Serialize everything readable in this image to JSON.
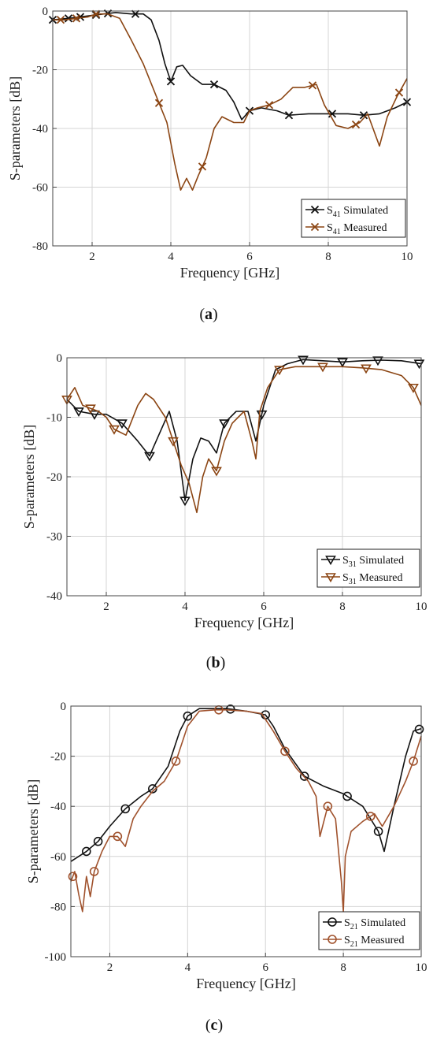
{
  "chart_data": [
    {
      "type": "line",
      "caption": "a",
      "xlabel": "Frequency [GHz]",
      "ylabel": "S-parameters [dB]",
      "xlim": [
        1,
        10
      ],
      "ylim": [
        -80,
        0
      ],
      "xticks": [
        2,
        4,
        6,
        8,
        10
      ],
      "yticks": [
        0,
        -20,
        -40,
        -60,
        -80
      ],
      "grid": true,
      "legend_position": "bottom-right",
      "series": [
        {
          "name": "S41 Simulated",
          "name_main": "S",
          "name_sub": "41",
          "name_rest": " Simulated",
          "color": "#111111",
          "marker": "x",
          "x": [
            1.0,
            1.4,
            1.7,
            2.0,
            2.3,
            2.6,
            3.0,
            3.3,
            3.5,
            3.7,
            3.85,
            4.0,
            4.15,
            4.3,
            4.5,
            4.8,
            5.1,
            5.4,
            5.6,
            5.8,
            6.0,
            6.3,
            6.7,
            7.0,
            7.5,
            8.0,
            8.5,
            8.9,
            9.3,
            9.7,
            10.0
          ],
          "y": [
            -3,
            -2.5,
            -2,
            -1.5,
            -1,
            -0.5,
            -1,
            -1,
            -3,
            -10,
            -18,
            -24,
            -19,
            -18.5,
            -22,
            -25,
            -25,
            -27,
            -31,
            -37,
            -34,
            -33,
            -34,
            -35.5,
            -35,
            -35,
            -35,
            -35.5,
            -35,
            -33,
            -31
          ],
          "marker_x": [
            1.0,
            1.4,
            1.7,
            2.1,
            2.4,
            3.1,
            4.0,
            5.1,
            6.0,
            7.0,
            8.1,
            8.9,
            10.0
          ]
        },
        {
          "name": "S41 Measured",
          "name_main": "S",
          "name_sub": "41",
          "name_rest": " Measured",
          "color": "#8b4513",
          "marker": "x",
          "x": [
            1.0,
            1.3,
            1.6,
            1.9,
            2.1,
            2.4,
            2.7,
            3.0,
            3.3,
            3.6,
            3.9,
            4.1,
            4.25,
            4.4,
            4.55,
            4.7,
            4.9,
            5.1,
            5.3,
            5.6,
            5.85,
            6.0,
            6.2,
            6.5,
            6.8,
            7.1,
            7.4,
            7.7,
            7.9,
            8.2,
            8.5,
            8.8,
            9.0,
            9.3,
            9.5,
            9.75,
            10.0
          ],
          "y": [
            -3,
            -3,
            -2.5,
            -2,
            -1,
            -1,
            -2.5,
            -10,
            -18,
            -28,
            -38,
            -52,
            -61,
            -57,
            -61,
            -56,
            -50,
            -40,
            -36,
            -38,
            -38,
            -34,
            -33,
            -32,
            -30,
            -26,
            -26,
            -25,
            -32,
            -39,
            -40,
            -38,
            -35,
            -46,
            -36,
            -29,
            -23
          ],
          "marker_x": [
            1.2,
            1.6,
            2.1,
            3.7,
            4.8,
            6.5,
            7.6,
            8.7,
            9.8
          ]
        }
      ]
    },
    {
      "type": "line",
      "caption": "b",
      "xlabel": "Frequency [GHz]",
      "ylabel": "S-parameters [dB]",
      "xlim": [
        1,
        10
      ],
      "ylim": [
        -40,
        0
      ],
      "xticks": [
        2,
        4,
        6,
        8,
        10
      ],
      "yticks": [
        0,
        -10,
        -20,
        -30,
        -40
      ],
      "grid": true,
      "legend_position": "bottom-right",
      "series": [
        {
          "name": "S31 Simulated",
          "name_main": "S",
          "name_sub": "31",
          "name_rest": " Simulated",
          "color": "#111111",
          "marker": "triangle-down",
          "x": [
            1.0,
            1.3,
            1.7,
            2.0,
            2.4,
            2.8,
            3.1,
            3.4,
            3.6,
            3.8,
            4.0,
            4.2,
            4.4,
            4.6,
            4.8,
            5.0,
            5.3,
            5.6,
            5.8,
            6.0,
            6.3,
            6.6,
            7.0,
            7.5,
            8.0,
            8.5,
            9.0,
            9.5,
            10.0
          ],
          "y": [
            -7,
            -9,
            -9.5,
            -9.5,
            -11,
            -14,
            -16.5,
            -12,
            -9,
            -14,
            -24,
            -17,
            -13.5,
            -14,
            -16,
            -11,
            -9,
            -9,
            -14,
            -8,
            -2,
            -1,
            -0.3,
            -0.5,
            -0.7,
            -0.5,
            -0.4,
            -0.5,
            -1
          ],
          "marker_x": [
            1.3,
            1.7,
            2.4,
            3.1,
            4.0,
            5.0,
            5.95,
            7.0,
            8.0,
            8.9,
            9.95
          ]
        },
        {
          "name": "S31 Measured",
          "name_main": "S",
          "name_sub": "31",
          "name_rest": " Measured",
          "color": "#8b4513",
          "marker": "triangle-down",
          "x": [
            1.0,
            1.2,
            1.4,
            1.6,
            1.8,
            2.0,
            2.2,
            2.5,
            2.8,
            3.0,
            3.2,
            3.5,
            3.7,
            3.9,
            4.1,
            4.3,
            4.45,
            4.6,
            4.8,
            5.0,
            5.2,
            5.5,
            5.7,
            5.8,
            5.9,
            6.1,
            6.4,
            6.8,
            7.5,
            8.0,
            8.5,
            9.0,
            9.5,
            9.8,
            10.0
          ],
          "y": [
            -7,
            -5,
            -8,
            -8.5,
            -9,
            -10,
            -12,
            -13,
            -8,
            -6,
            -7,
            -10,
            -14,
            -18,
            -21,
            -26,
            -20,
            -17,
            -19,
            -14,
            -11,
            -9,
            -14,
            -17,
            -9,
            -5,
            -2,
            -1.5,
            -1.5,
            -1.5,
            -1.7,
            -2,
            -3,
            -5,
            -8
          ],
          "marker_x": [
            1.0,
            1.6,
            2.2,
            3.7,
            4.8,
            6.4,
            7.5,
            8.6,
            9.8
          ]
        }
      ]
    },
    {
      "type": "line",
      "caption": "c",
      "xlabel": "Frequency [GHz]",
      "ylabel": "S-parameters [dB]",
      "xlim": [
        1,
        10
      ],
      "ylim": [
        -100,
        0
      ],
      "xticks": [
        2,
        4,
        6,
        8,
        10
      ],
      "yticks": [
        0,
        -20,
        -40,
        -60,
        -80,
        -100
      ],
      "grid": true,
      "legend_position": "bottom-right",
      "series": [
        {
          "name": "S21 Simulated",
          "name_main": "S",
          "name_sub": "21",
          "name_rest": " Simulated",
          "color": "#111111",
          "marker": "circle",
          "x": [
            1.0,
            1.4,
            1.7,
            2.0,
            2.4,
            2.8,
            3.1,
            3.5,
            3.8,
            4.0,
            4.3,
            4.6,
            5.0,
            5.5,
            6.0,
            6.2,
            6.5,
            7.0,
            7.5,
            8.0,
            8.5,
            8.9,
            9.05,
            9.3,
            9.6,
            9.8,
            10.0
          ],
          "y": [
            -62,
            -58,
            -54,
            -48,
            -41,
            -36,
            -33,
            -24,
            -10,
            -4,
            -1,
            -1,
            -1,
            -2,
            -3.5,
            -8,
            -17,
            -28,
            -32,
            -35,
            -40,
            -50,
            -58,
            -40,
            -20,
            -10,
            -9
          ],
          "marker_x": [
            1.4,
            1.7,
            2.4,
            3.1,
            4.0,
            5.1,
            6.0,
            7.0,
            8.1,
            8.9,
            9.95
          ]
        },
        {
          "name": "S21 Measured",
          "name_main": "S",
          "name_sub": "21",
          "name_rest": " Measured",
          "color": "#a0522d",
          "marker": "circle",
          "x": [
            1.0,
            1.1,
            1.2,
            1.3,
            1.4,
            1.5,
            1.6,
            1.8,
            2.0,
            2.2,
            2.4,
            2.6,
            2.8,
            3.1,
            3.4,
            3.7,
            4.0,
            4.3,
            4.7,
            5.0,
            5.5,
            5.9,
            6.2,
            6.5,
            6.8,
            7.1,
            7.3,
            7.4,
            7.6,
            7.8,
            7.95,
            8.0,
            8.05,
            8.2,
            8.5,
            8.8,
            9.0,
            9.3,
            9.6,
            9.8,
            10.0
          ],
          "y": [
            -70,
            -66,
            -75,
            -82,
            -68,
            -76,
            -66,
            -58,
            -52,
            -52,
            -56,
            -45,
            -40,
            -34,
            -30,
            -22,
            -8,
            -2,
            -1.5,
            -1.5,
            -2,
            -3,
            -10,
            -18,
            -25,
            -30,
            -36,
            -52,
            -40,
            -45,
            -70,
            -82,
            -60,
            -50,
            -46,
            -43,
            -48,
            -40,
            -30,
            -22,
            -12
          ],
          "marker_x": [
            1.05,
            1.6,
            2.2,
            3.7,
            4.8,
            6.5,
            7.6,
            8.7,
            9.8
          ]
        }
      ]
    }
  ]
}
